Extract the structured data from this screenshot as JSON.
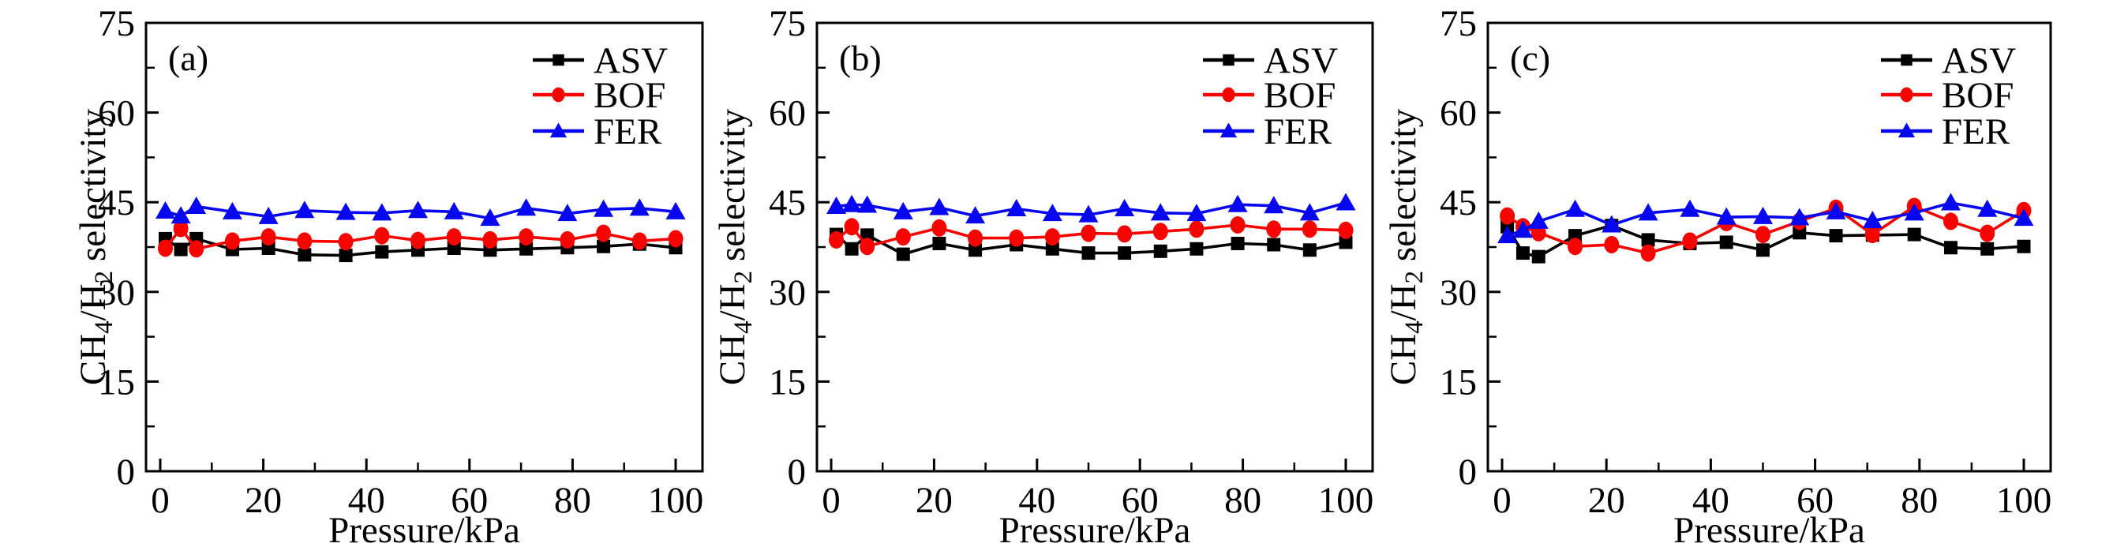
{
  "figure": {
    "background": "#ffffff",
    "xlabel": "Pressure/kPa",
    "ylabel": "CH4/H2 selectivity",
    "ylabel_parts": [
      {
        "t": "CH",
        "sub": false
      },
      {
        "t": "4",
        "sub": true
      },
      {
        "t": "/H",
        "sub": false
      },
      {
        "t": "2",
        "sub": true
      },
      {
        "t": " selectivity",
        "sub": false
      }
    ],
    "legend_labels": [
      "ASV",
      "BOF",
      "FER"
    ],
    "colors": {
      "ASV": "#000000",
      "BOF": "#f80400",
      "FER": "#0606f0"
    },
    "markers": {
      "ASV": "square",
      "BOF": "circle",
      "FER": "triangle"
    }
  },
  "chart_data": [
    {
      "type": "line",
      "panel_label": "(a)",
      "title": "",
      "xlabel": "Pressure/kPa",
      "ylabel": "CH4/H2 selectivity",
      "xlim": [
        -2.8,
        105.3
      ],
      "ylim": [
        0,
        75
      ],
      "xticks": [
        0,
        20,
        40,
        60,
        80,
        100
      ],
      "xticks_minor": [
        10,
        30,
        50,
        70,
        90
      ],
      "yticks": [
        0,
        15,
        30,
        45,
        60,
        75
      ],
      "yticks_minor": [
        7.5,
        22.5,
        37.5,
        52.5,
        67.5
      ],
      "grid": false,
      "legend_position": "top-right",
      "x": [
        1,
        4,
        7,
        14,
        21,
        28,
        36,
        43,
        50,
        57,
        64,
        71,
        79,
        86,
        93,
        100
      ],
      "series": [
        {
          "name": "ASV",
          "marker": "square",
          "color": "#000000",
          "values": [
            38.9,
            37.1,
            38.9,
            37.1,
            37.3,
            36.2,
            36.1,
            36.7,
            37.0,
            37.3,
            37.0,
            37.2,
            37.4,
            37.6,
            38.0,
            37.4
          ]
        },
        {
          "name": "BOF",
          "marker": "circle",
          "color": "#f80400",
          "values": [
            37.3,
            40.6,
            37.2,
            38.5,
            39.2,
            38.5,
            38.4,
            39.4,
            38.6,
            39.2,
            38.7,
            39.2,
            38.7,
            39.8,
            38.5,
            38.9
          ]
        },
        {
          "name": "FER",
          "marker": "triangle",
          "color": "#0606f0",
          "values": [
            43.5,
            42.7,
            44.3,
            43.4,
            42.6,
            43.6,
            43.3,
            43.2,
            43.6,
            43.4,
            42.3,
            44.0,
            43.1,
            43.8,
            44.0,
            43.4
          ]
        }
      ]
    },
    {
      "type": "line",
      "panel_label": "(b)",
      "title": "",
      "xlabel": "Pressure/kPa",
      "ylabel": "CH4/H2 selectivity",
      "xlim": [
        -2.8,
        105.3
      ],
      "ylim": [
        0,
        75
      ],
      "xticks": [
        0,
        20,
        40,
        60,
        80,
        100
      ],
      "xticks_minor": [
        10,
        30,
        50,
        70,
        90
      ],
      "yticks": [
        0,
        15,
        30,
        45,
        60,
        75
      ],
      "yticks_minor": [
        7.5,
        22.5,
        37.5,
        52.5,
        67.5
      ],
      "grid": false,
      "legend_position": "top-right",
      "x": [
        1,
        4,
        7,
        14,
        21,
        28,
        36,
        43,
        50,
        57,
        64,
        71,
        79,
        86,
        93,
        100
      ],
      "series": [
        {
          "name": "ASV",
          "marker": "square",
          "color": "#000000",
          "values": [
            39.6,
            37.2,
            39.5,
            36.3,
            38.1,
            37.0,
            37.9,
            37.2,
            36.5,
            36.5,
            36.8,
            37.2,
            38.1,
            37.9,
            37.0,
            38.3
          ]
        },
        {
          "name": "BOF",
          "marker": "circle",
          "color": "#f80400",
          "values": [
            38.7,
            40.9,
            37.6,
            39.2,
            40.7,
            39.0,
            39.0,
            39.2,
            39.8,
            39.7,
            40.1,
            40.5,
            41.2,
            40.5,
            40.5,
            40.3
          ]
        },
        {
          "name": "FER",
          "marker": "triangle",
          "color": "#0606f0",
          "values": [
            44.3,
            44.6,
            44.5,
            43.4,
            44.1,
            42.7,
            43.9,
            43.1,
            42.9,
            43.9,
            43.2,
            43.1,
            44.6,
            44.4,
            43.2,
            44.9
          ]
        }
      ]
    },
    {
      "type": "line",
      "panel_label": "(c)",
      "title": "",
      "xlabel": "Pressure/kPa",
      "ylabel": "CH4/H2 selectivity",
      "xlim": [
        -2.8,
        105.3
      ],
      "ylim": [
        0,
        75
      ],
      "xticks": [
        0,
        20,
        40,
        60,
        80,
        100
      ],
      "xticks_minor": [
        10,
        30,
        50,
        70,
        90
      ],
      "yticks": [
        0,
        15,
        30,
        45,
        60,
        75
      ],
      "yticks_minor": [
        7.5,
        22.5,
        37.5,
        52.5,
        67.5
      ],
      "grid": false,
      "legend_position": "top-right",
      "x": [
        1,
        4,
        7,
        14,
        21,
        28,
        36,
        43,
        50,
        57,
        64,
        71,
        79,
        86,
        93,
        100
      ],
      "series": [
        {
          "name": "ASV",
          "marker": "square",
          "color": "#000000",
          "values": [
            40.9,
            36.5,
            35.9,
            39.4,
            41.1,
            38.7,
            38.1,
            38.3,
            37.0,
            39.9,
            39.4,
            39.5,
            39.6,
            37.4,
            37.2,
            37.6
          ]
        },
        {
          "name": "BOF",
          "marker": "circle",
          "color": "#f80400",
          "values": [
            42.7,
            40.9,
            39.9,
            37.6,
            37.9,
            36.5,
            38.5,
            41.6,
            39.6,
            41.8,
            44.0,
            39.6,
            44.3,
            41.8,
            39.8,
            43.6
          ]
        },
        {
          "name": "FER",
          "marker": "triangle",
          "color": "#0606f0",
          "values": [
            39.4,
            40.3,
            41.8,
            43.8,
            41.2,
            43.2,
            43.8,
            42.5,
            42.6,
            42.4,
            43.4,
            41.9,
            43.2,
            44.9,
            43.8,
            42.3
          ]
        }
      ]
    }
  ]
}
